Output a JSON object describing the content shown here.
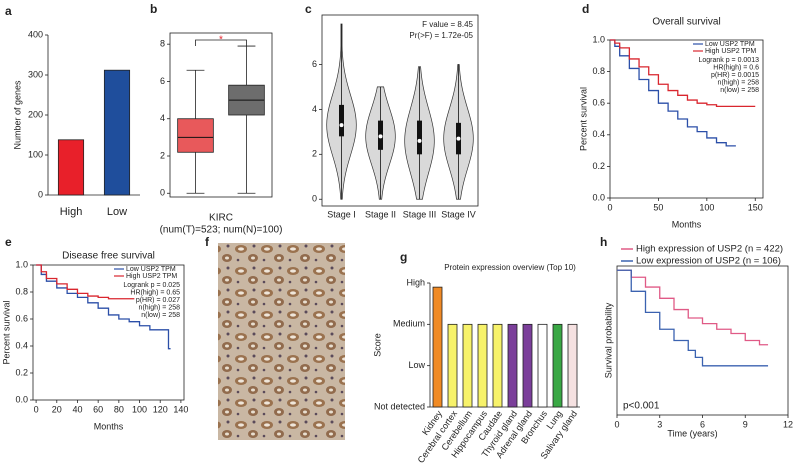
{
  "chart_data": [
    {
      "type": "bar",
      "panel": "a",
      "ylabel": "Number of genes",
      "categories": [
        "High",
        "Low"
      ],
      "values": [
        138,
        312
      ],
      "colors": [
        "#e8202a",
        "#1f4e9c"
      ],
      "ylim": [
        0,
        400
      ],
      "yticks": [
        0,
        100,
        200,
        300,
        400
      ]
    },
    {
      "type": "box",
      "panel": "b",
      "xlabel": "KIRC",
      "subtitle": "(num(T)=523; num(N)=100)",
      "significance": "*",
      "boxes": [
        {
          "min": 0,
          "q1": 2.2,
          "median": 3.0,
          "q3": 4.0,
          "max": 6.6,
          "color": "#e8595b"
        },
        {
          "min": 0,
          "q1": 4.2,
          "median": 5.0,
          "q3": 5.8,
          "max": 7.9,
          "color": "#6d6d6d"
        }
      ],
      "ylim": [
        -0.2,
        8.6
      ],
      "yticks": [
        0,
        2,
        4,
        6,
        8
      ]
    },
    {
      "type": "violin",
      "panel": "c",
      "annotations": [
        "F value = 8.45",
        "Pr(>F) = 1.72e-05"
      ],
      "categories": [
        "Stage I",
        "Stage II",
        "Stage III",
        "Stage IV"
      ],
      "violins": [
        {
          "min": 0,
          "q1": 2.8,
          "median": 3.3,
          "q3": 4.2,
          "max": 7.8
        },
        {
          "min": 0,
          "q1": 2.2,
          "median": 2.8,
          "q3": 3.5,
          "max": 5.0
        },
        {
          "min": 0,
          "q1": 2.0,
          "median": 2.6,
          "q3": 3.5,
          "max": 5.9
        },
        {
          "min": 0,
          "q1": 2.0,
          "median": 2.7,
          "q3": 3.4,
          "max": 6.0
        }
      ],
      "color": "#d9d9d9",
      "ylim": [
        -0.3,
        8.2
      ],
      "yticks": [
        0,
        2,
        4,
        6
      ]
    },
    {
      "type": "survival",
      "panel": "d",
      "title": "Overall survival",
      "xlabel": "Months",
      "ylabel": "Percent survival",
      "series": [
        {
          "name": "Low USP2 TPM",
          "color": "#2b4fa8",
          "x": [
            0,
            5,
            10,
            20,
            30,
            40,
            50,
            60,
            70,
            80,
            90,
            100,
            110,
            120,
            130
          ],
          "values": [
            1,
            0.96,
            0.9,
            0.82,
            0.75,
            0.68,
            0.6,
            0.55,
            0.5,
            0.45,
            0.42,
            0.38,
            0.35,
            0.33,
            0.33
          ]
        },
        {
          "name": "High USP2 TPM",
          "color": "#d9262e",
          "x": [
            0,
            5,
            10,
            20,
            30,
            40,
            50,
            60,
            70,
            80,
            90,
            100,
            110,
            120,
            130,
            150
          ],
          "values": [
            1,
            0.98,
            0.95,
            0.88,
            0.83,
            0.78,
            0.72,
            0.68,
            0.65,
            0.62,
            0.6,
            0.59,
            0.58,
            0.58,
            0.58,
            0.58
          ]
        }
      ],
      "stats": [
        "Logrank p = 0.0013",
        "HR(high) = 0.6",
        "p(HR) = 0.0015",
        "n(high) = 258",
        "n(low) = 258"
      ],
      "xlim": [
        0,
        158
      ],
      "xticks": [
        0,
        50,
        100,
        150
      ],
      "ylim": [
        0,
        1
      ],
      "yticks": [
        {
          "value": 0,
          "label": "0.0"
        },
        0.2,
        0.4,
        0.6,
        0.8,
        {
          "value": 1,
          "label": "1.0"
        }
      ]
    },
    {
      "type": "survival",
      "panel": "e",
      "title": "Disease free survival",
      "xlabel": "Months",
      "ylabel": "Percent survival",
      "series": [
        {
          "name": "Low USP2 TPM",
          "color": "#2b4fa8",
          "x": [
            0,
            5,
            10,
            20,
            30,
            40,
            50,
            60,
            70,
            80,
            90,
            100,
            110,
            120,
            128,
            130
          ],
          "values": [
            1,
            0.93,
            0.88,
            0.83,
            0.79,
            0.76,
            0.72,
            0.68,
            0.63,
            0.6,
            0.58,
            0.55,
            0.52,
            0.52,
            0.38,
            0.38
          ]
        },
        {
          "name": "High USP2 TPM",
          "color": "#d9262e",
          "x": [
            0,
            5,
            10,
            20,
            30,
            40,
            50,
            60,
            70,
            80,
            95
          ],
          "values": [
            1,
            0.95,
            0.9,
            0.86,
            0.82,
            0.79,
            0.77,
            0.76,
            0.75,
            0.75,
            0.75
          ]
        }
      ],
      "stats": [
        "Logrank p = 0.025",
        "HR(high) = 0.65",
        "p(HR) = 0.027",
        "n(high) = 258",
        "n(low) = 258"
      ],
      "xlim": [
        -3,
        143
      ],
      "xticks": [
        0,
        20,
        40,
        60,
        80,
        100,
        120,
        140
      ],
      "ylim": [
        0,
        1
      ],
      "yticks": [
        {
          "value": 0,
          "label": "0.0"
        },
        0.2,
        0.4,
        0.6,
        0.8,
        {
          "value": 1,
          "label": "1.0"
        }
      ]
    },
    {
      "type": "image",
      "panel": "f"
    },
    {
      "type": "bar",
      "panel": "g",
      "title": "Protein expression overview (Top 10)",
      "ylabel": "Score",
      "categories": [
        "Kidney",
        "Cerebral cortex",
        "Cerebellum",
        "Hippocampus",
        "Caudate",
        "Thyroid gland",
        "Adrenal gland",
        "Bronchus",
        "Lung",
        "Salivary gland"
      ],
      "values": [
        2.9,
        2,
        2,
        2,
        2,
        2,
        2,
        2,
        2,
        2
      ],
      "colors": [
        "#f08a24",
        "#f7f26a",
        "#f7f26a",
        "#f7f26a",
        "#f7f26a",
        "#7b3f9a",
        "#7b3f9a",
        "#ffffff",
        "#3aa845",
        "#f5e1e1"
      ],
      "ylim": [
        0,
        3
      ],
      "yticks": [
        {
          "value": 0,
          "label": "Not detected"
        },
        {
          "value": 1,
          "label": "Low"
        },
        {
          "value": 2,
          "label": "Medium"
        },
        {
          "value": 3,
          "label": "High"
        }
      ]
    },
    {
      "type": "survival",
      "panel": "h",
      "xlabel": "Time (years)",
      "ylabel": "Survival probability",
      "annotation": "p<0.001",
      "series": [
        {
          "name": "High expression of USP2 (n = 422)",
          "color": "#e05a86",
          "x": [
            0,
            1,
            2,
            3,
            4,
            5,
            6,
            7,
            8,
            9,
            10,
            10.6
          ],
          "values": [
            1,
            0.95,
            0.88,
            0.8,
            0.72,
            0.66,
            0.62,
            0.58,
            0.55,
            0.5,
            0.47,
            0.47
          ]
        },
        {
          "name": "Low expression of USP2 (n = 106)",
          "color": "#3b62b0",
          "x": [
            0,
            1,
            2,
            3,
            4,
            5,
            5.5,
            6,
            7,
            8,
            9,
            10,
            10.6
          ],
          "values": [
            1,
            0.85,
            0.7,
            0.58,
            0.5,
            0.43,
            0.38,
            0.32,
            0.32,
            0.32,
            0.32,
            0.32,
            0.32
          ]
        }
      ],
      "xlim": [
        0,
        12
      ],
      "xticks": [
        0,
        3,
        6,
        9,
        12
      ],
      "ylim": [
        -0.03,
        1.03
      ]
    }
  ]
}
